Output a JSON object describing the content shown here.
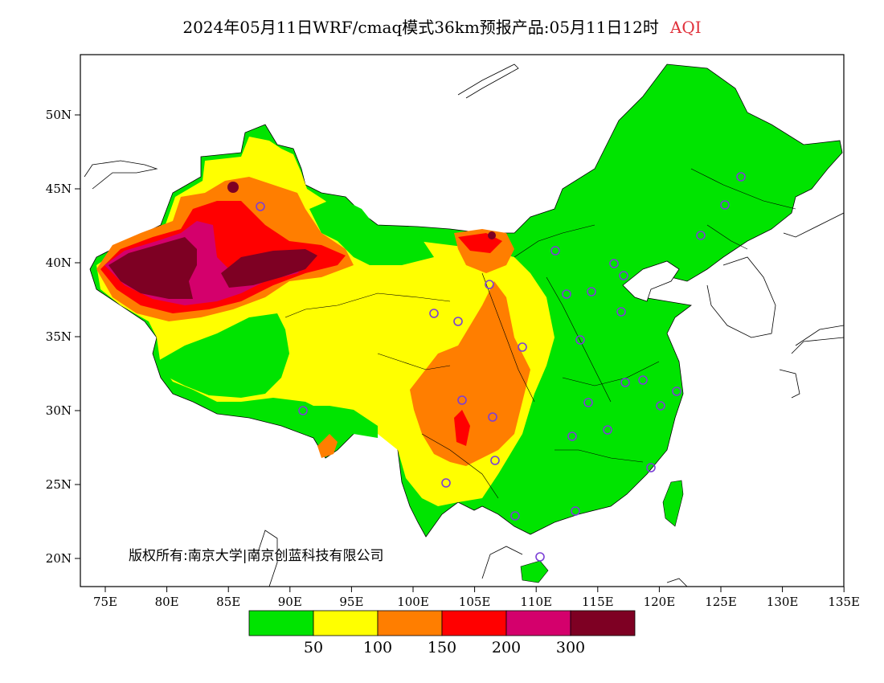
{
  "title": {
    "main": "2024年05月11日WRF/cmaq模式36km预报产品:05月11日12时",
    "variable": "AQI"
  },
  "axes": {
    "lon_labels": [
      "75E",
      "80E",
      "85E",
      "90E",
      "95E",
      "100E",
      "105E",
      "110E",
      "115E",
      "120E",
      "125E",
      "130E",
      "135E"
    ],
    "lat_labels": [
      "20N",
      "25N",
      "30N",
      "35N",
      "40N",
      "45N",
      "50N"
    ]
  },
  "copyright": "版权所有:南京大学|南京创蓝科技有限公司",
  "legend": {
    "colors": [
      "#00e400",
      "#ffff00",
      "#ff7e00",
      "#ff0000",
      "#d4006c",
      "#7e0023"
    ],
    "labels": [
      "50",
      "100",
      "150",
      "200",
      "300"
    ]
  },
  "colors": {
    "frame": "#000000",
    "station_ring": "#7b3fd6",
    "water": "#ffffff"
  }
}
